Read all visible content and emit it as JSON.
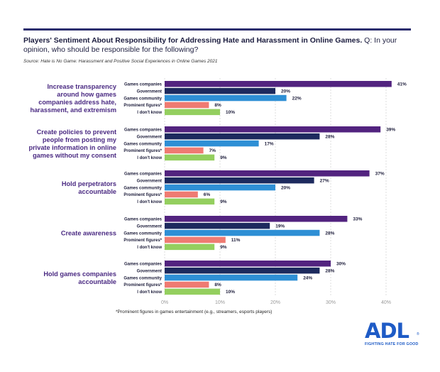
{
  "header": {
    "title_bold": "Players' Sentiment About Responsibility for Addressing Hate and Harassment in Online Games.",
    "title_rest": " Q: In your opinion, who should be responsible for the following?",
    "source": "Source: Hate is No Game: Harassment and Positive Social Experiences in Online Games 2021"
  },
  "footnote": "*Prominent figures in games entertainment (e.g., streamers, esports players)",
  "logo": {
    "name": "ADL",
    "tagline": "FIGHTING HATE FOR GOOD",
    "mark": "®"
  },
  "colors": {
    "Games companies": "#52237f",
    "Government": "#1d2a5e",
    "Games community": "#2e8fd5",
    "Prominent figures*": "#ef7b72",
    "I don't know": "#94cf5f",
    "group_label": "#4a2a82"
  },
  "chart_data": {
    "type": "bar",
    "orientation": "horizontal",
    "series_names": [
      "Games companies",
      "Government",
      "Games community",
      "Prominent figures*",
      "I don't know"
    ],
    "groups": [
      {
        "label": [
          "Increase transparency",
          "around how games",
          "companies address hate,",
          "harassment, and extremism"
        ],
        "values": [
          41,
          20,
          22,
          8,
          10
        ]
      },
      {
        "label": [
          "Create policies to prevent",
          "people from posting my",
          "private information in online",
          "games without my consent"
        ],
        "values": [
          39,
          28,
          17,
          7,
          9
        ]
      },
      {
        "label": [
          "Hold perpetrators",
          "accountable"
        ],
        "values": [
          37,
          27,
          20,
          6,
          9
        ]
      },
      {
        "label": [
          "Create awareness"
        ],
        "values": [
          33,
          19,
          28,
          11,
          9
        ]
      },
      {
        "label": [
          "Hold games companies",
          "accountable"
        ],
        "values": [
          30,
          28,
          24,
          8,
          10
        ]
      }
    ],
    "xlim": [
      0,
      40
    ],
    "xticks": [
      "0%",
      "10%",
      "20%",
      "30%",
      "40%"
    ],
    "value_suffix": "%",
    "grid": true
  }
}
